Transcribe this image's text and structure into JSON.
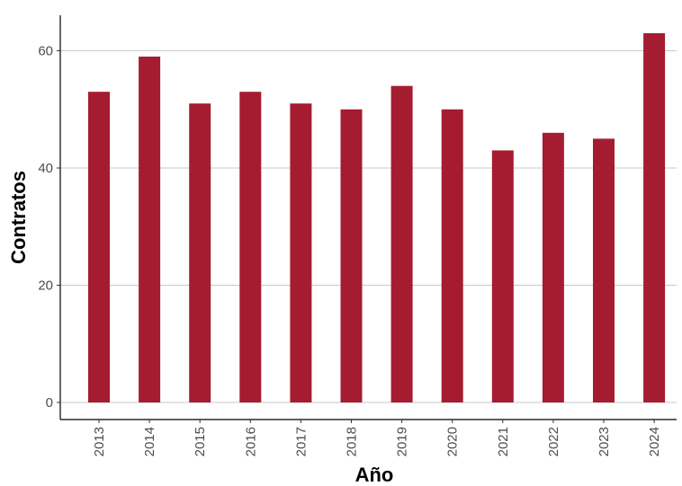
{
  "chart_data": {
    "type": "bar",
    "title": "",
    "xlabel": "Año",
    "ylabel": "Contratos",
    "categories": [
      "2013",
      "2014",
      "2015",
      "2016",
      "2017",
      "2018",
      "2019",
      "2020",
      "2021",
      "2022",
      "2023",
      "2024"
    ],
    "values": [
      53,
      59,
      51,
      53,
      51,
      50,
      54,
      50,
      43,
      46,
      45,
      63
    ],
    "ylim": [
      0,
      66
    ],
    "yticks": [
      0,
      20,
      40,
      60
    ],
    "grid": "horizontal-major",
    "colors": {
      "bar": "#A51C30",
      "grid": "#c8c8c8",
      "axis": "#000000"
    }
  }
}
